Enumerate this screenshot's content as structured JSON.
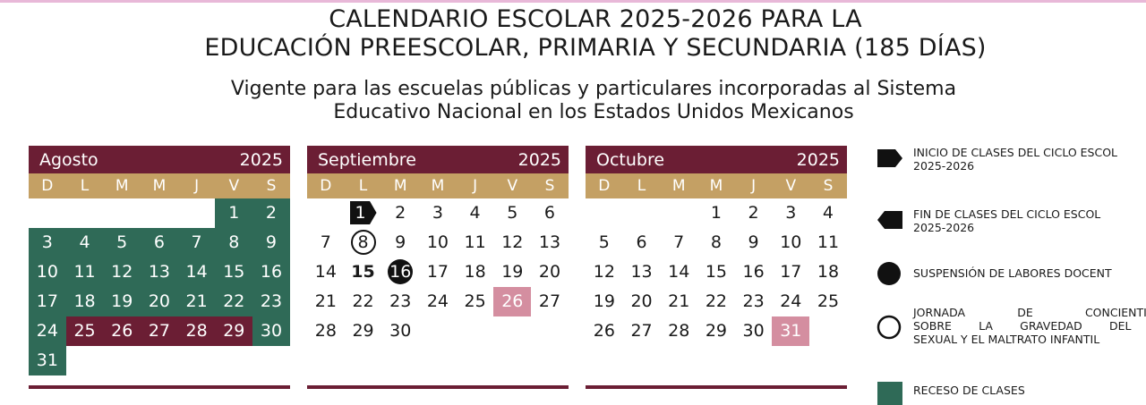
{
  "title": {
    "line1": "CALENDARIO ESCOLAR 2025-2026 PARA LA",
    "line2": "EDUCACIÓN PREESCOLAR, PRIMARIA Y SECUNDARIA (185 DÍAS)"
  },
  "subtitle": {
    "line1": "Vigente para las escuelas públicas y particulares incorporadas al Sistema",
    "line2": "Educativo Nacional en los Estados Unidos Mexicanos"
  },
  "weekdays": [
    "D",
    "L",
    "M",
    "M",
    "J",
    "V",
    "S"
  ],
  "months": [
    {
      "name": "Agosto",
      "year": "2025",
      "offset": 5,
      "days": [
        {
          "n": "1",
          "s": "g"
        },
        {
          "n": "2",
          "s": "g"
        },
        {
          "n": "3",
          "s": "g"
        },
        {
          "n": "4",
          "s": "g"
        },
        {
          "n": "5",
          "s": "g"
        },
        {
          "n": "6",
          "s": "g"
        },
        {
          "n": "7",
          "s": "g"
        },
        {
          "n": "8",
          "s": "g"
        },
        {
          "n": "9",
          "s": "g"
        },
        {
          "n": "10",
          "s": "g"
        },
        {
          "n": "11",
          "s": "g"
        },
        {
          "n": "12",
          "s": "g"
        },
        {
          "n": "13",
          "s": "g"
        },
        {
          "n": "14",
          "s": "g"
        },
        {
          "n": "15",
          "s": "g"
        },
        {
          "n": "16",
          "s": "g"
        },
        {
          "n": "17",
          "s": "g"
        },
        {
          "n": "18",
          "s": "g"
        },
        {
          "n": "19",
          "s": "g"
        },
        {
          "n": "20",
          "s": "g"
        },
        {
          "n": "21",
          "s": "g"
        },
        {
          "n": "22",
          "s": "g"
        },
        {
          "n": "23",
          "s": "g"
        },
        {
          "n": "24",
          "s": "g"
        },
        {
          "n": "25",
          "s": "m"
        },
        {
          "n": "26",
          "s": "m"
        },
        {
          "n": "27",
          "s": "m"
        },
        {
          "n": "28",
          "s": "m"
        },
        {
          "n": "29",
          "s": "m"
        },
        {
          "n": "30",
          "s": "g"
        },
        {
          "n": "31",
          "s": "g"
        }
      ]
    },
    {
      "name": "Septiembre",
      "year": "2025",
      "offset": 1,
      "days": [
        {
          "n": "1",
          "s": "arrow"
        },
        {
          "n": "2",
          "s": ""
        },
        {
          "n": "3",
          "s": ""
        },
        {
          "n": "4",
          "s": ""
        },
        {
          "n": "5",
          "s": ""
        },
        {
          "n": "6",
          "s": ""
        },
        {
          "n": "7",
          "s": ""
        },
        {
          "n": "8",
          "s": "circle"
        },
        {
          "n": "9",
          "s": ""
        },
        {
          "n": "10",
          "s": ""
        },
        {
          "n": "11",
          "s": ""
        },
        {
          "n": "12",
          "s": ""
        },
        {
          "n": "13",
          "s": ""
        },
        {
          "n": "14",
          "s": ""
        },
        {
          "n": "15",
          "s": "b"
        },
        {
          "n": "16",
          "s": "filled"
        },
        {
          "n": "17",
          "s": ""
        },
        {
          "n": "18",
          "s": ""
        },
        {
          "n": "19",
          "s": ""
        },
        {
          "n": "20",
          "s": ""
        },
        {
          "n": "21",
          "s": ""
        },
        {
          "n": "22",
          "s": ""
        },
        {
          "n": "23",
          "s": ""
        },
        {
          "n": "24",
          "s": ""
        },
        {
          "n": "25",
          "s": ""
        },
        {
          "n": "26",
          "s": "p"
        },
        {
          "n": "27",
          "s": ""
        },
        {
          "n": "28",
          "s": ""
        },
        {
          "n": "29",
          "s": ""
        },
        {
          "n": "30",
          "s": ""
        }
      ]
    },
    {
      "name": "Octubre",
      "year": "2025",
      "offset": 3,
      "days": [
        {
          "n": "1",
          "s": ""
        },
        {
          "n": "2",
          "s": ""
        },
        {
          "n": "3",
          "s": ""
        },
        {
          "n": "4",
          "s": ""
        },
        {
          "n": "5",
          "s": ""
        },
        {
          "n": "6",
          "s": ""
        },
        {
          "n": "7",
          "s": ""
        },
        {
          "n": "8",
          "s": ""
        },
        {
          "n": "9",
          "s": ""
        },
        {
          "n": "10",
          "s": ""
        },
        {
          "n": "11",
          "s": ""
        },
        {
          "n": "12",
          "s": ""
        },
        {
          "n": "13",
          "s": ""
        },
        {
          "n": "14",
          "s": ""
        },
        {
          "n": "15",
          "s": ""
        },
        {
          "n": "16",
          "s": ""
        },
        {
          "n": "17",
          "s": ""
        },
        {
          "n": "18",
          "s": ""
        },
        {
          "n": "19",
          "s": ""
        },
        {
          "n": "20",
          "s": ""
        },
        {
          "n": "21",
          "s": ""
        },
        {
          "n": "22",
          "s": ""
        },
        {
          "n": "23",
          "s": ""
        },
        {
          "n": "24",
          "s": ""
        },
        {
          "n": "25",
          "s": ""
        },
        {
          "n": "26",
          "s": ""
        },
        {
          "n": "27",
          "s": ""
        },
        {
          "n": "28",
          "s": ""
        },
        {
          "n": "29",
          "s": ""
        },
        {
          "n": "30",
          "s": ""
        },
        {
          "n": "31",
          "s": "p"
        }
      ]
    }
  ],
  "legend": [
    {
      "icon": "start-arrow-icon",
      "line1": "INICIO DE CLASES DEL CICLO ESCOL",
      "line2": "2025-2026"
    },
    {
      "icon": "end-arrow-icon",
      "line1": "FIN DE CLASES DEL CICLO ESCOL",
      "line2": "2025-2026"
    },
    {
      "icon": "filled-circle-icon",
      "line1": "SUSPENSIÓN DE LABORES DOCENT",
      "line2": ""
    },
    {
      "icon": "open-circle-icon",
      "line1": "JORNADA DE CONCIENTIZACIO",
      "line2": "SOBRE LA GRAVEDAD DEL ABU",
      "line3": "SEXUAL Y EL MALTRATO INFANTIL"
    },
    {
      "icon": "green-square-icon",
      "line1": "RECESO DE CLASES"
    }
  ],
  "colors": {
    "month_header": "#6b1e34",
    "weekday_header": "#c4a064",
    "recess_green": "#2f6a57",
    "workshop_maroon": "#6b1e34",
    "pink_day": "#d48ea0"
  }
}
